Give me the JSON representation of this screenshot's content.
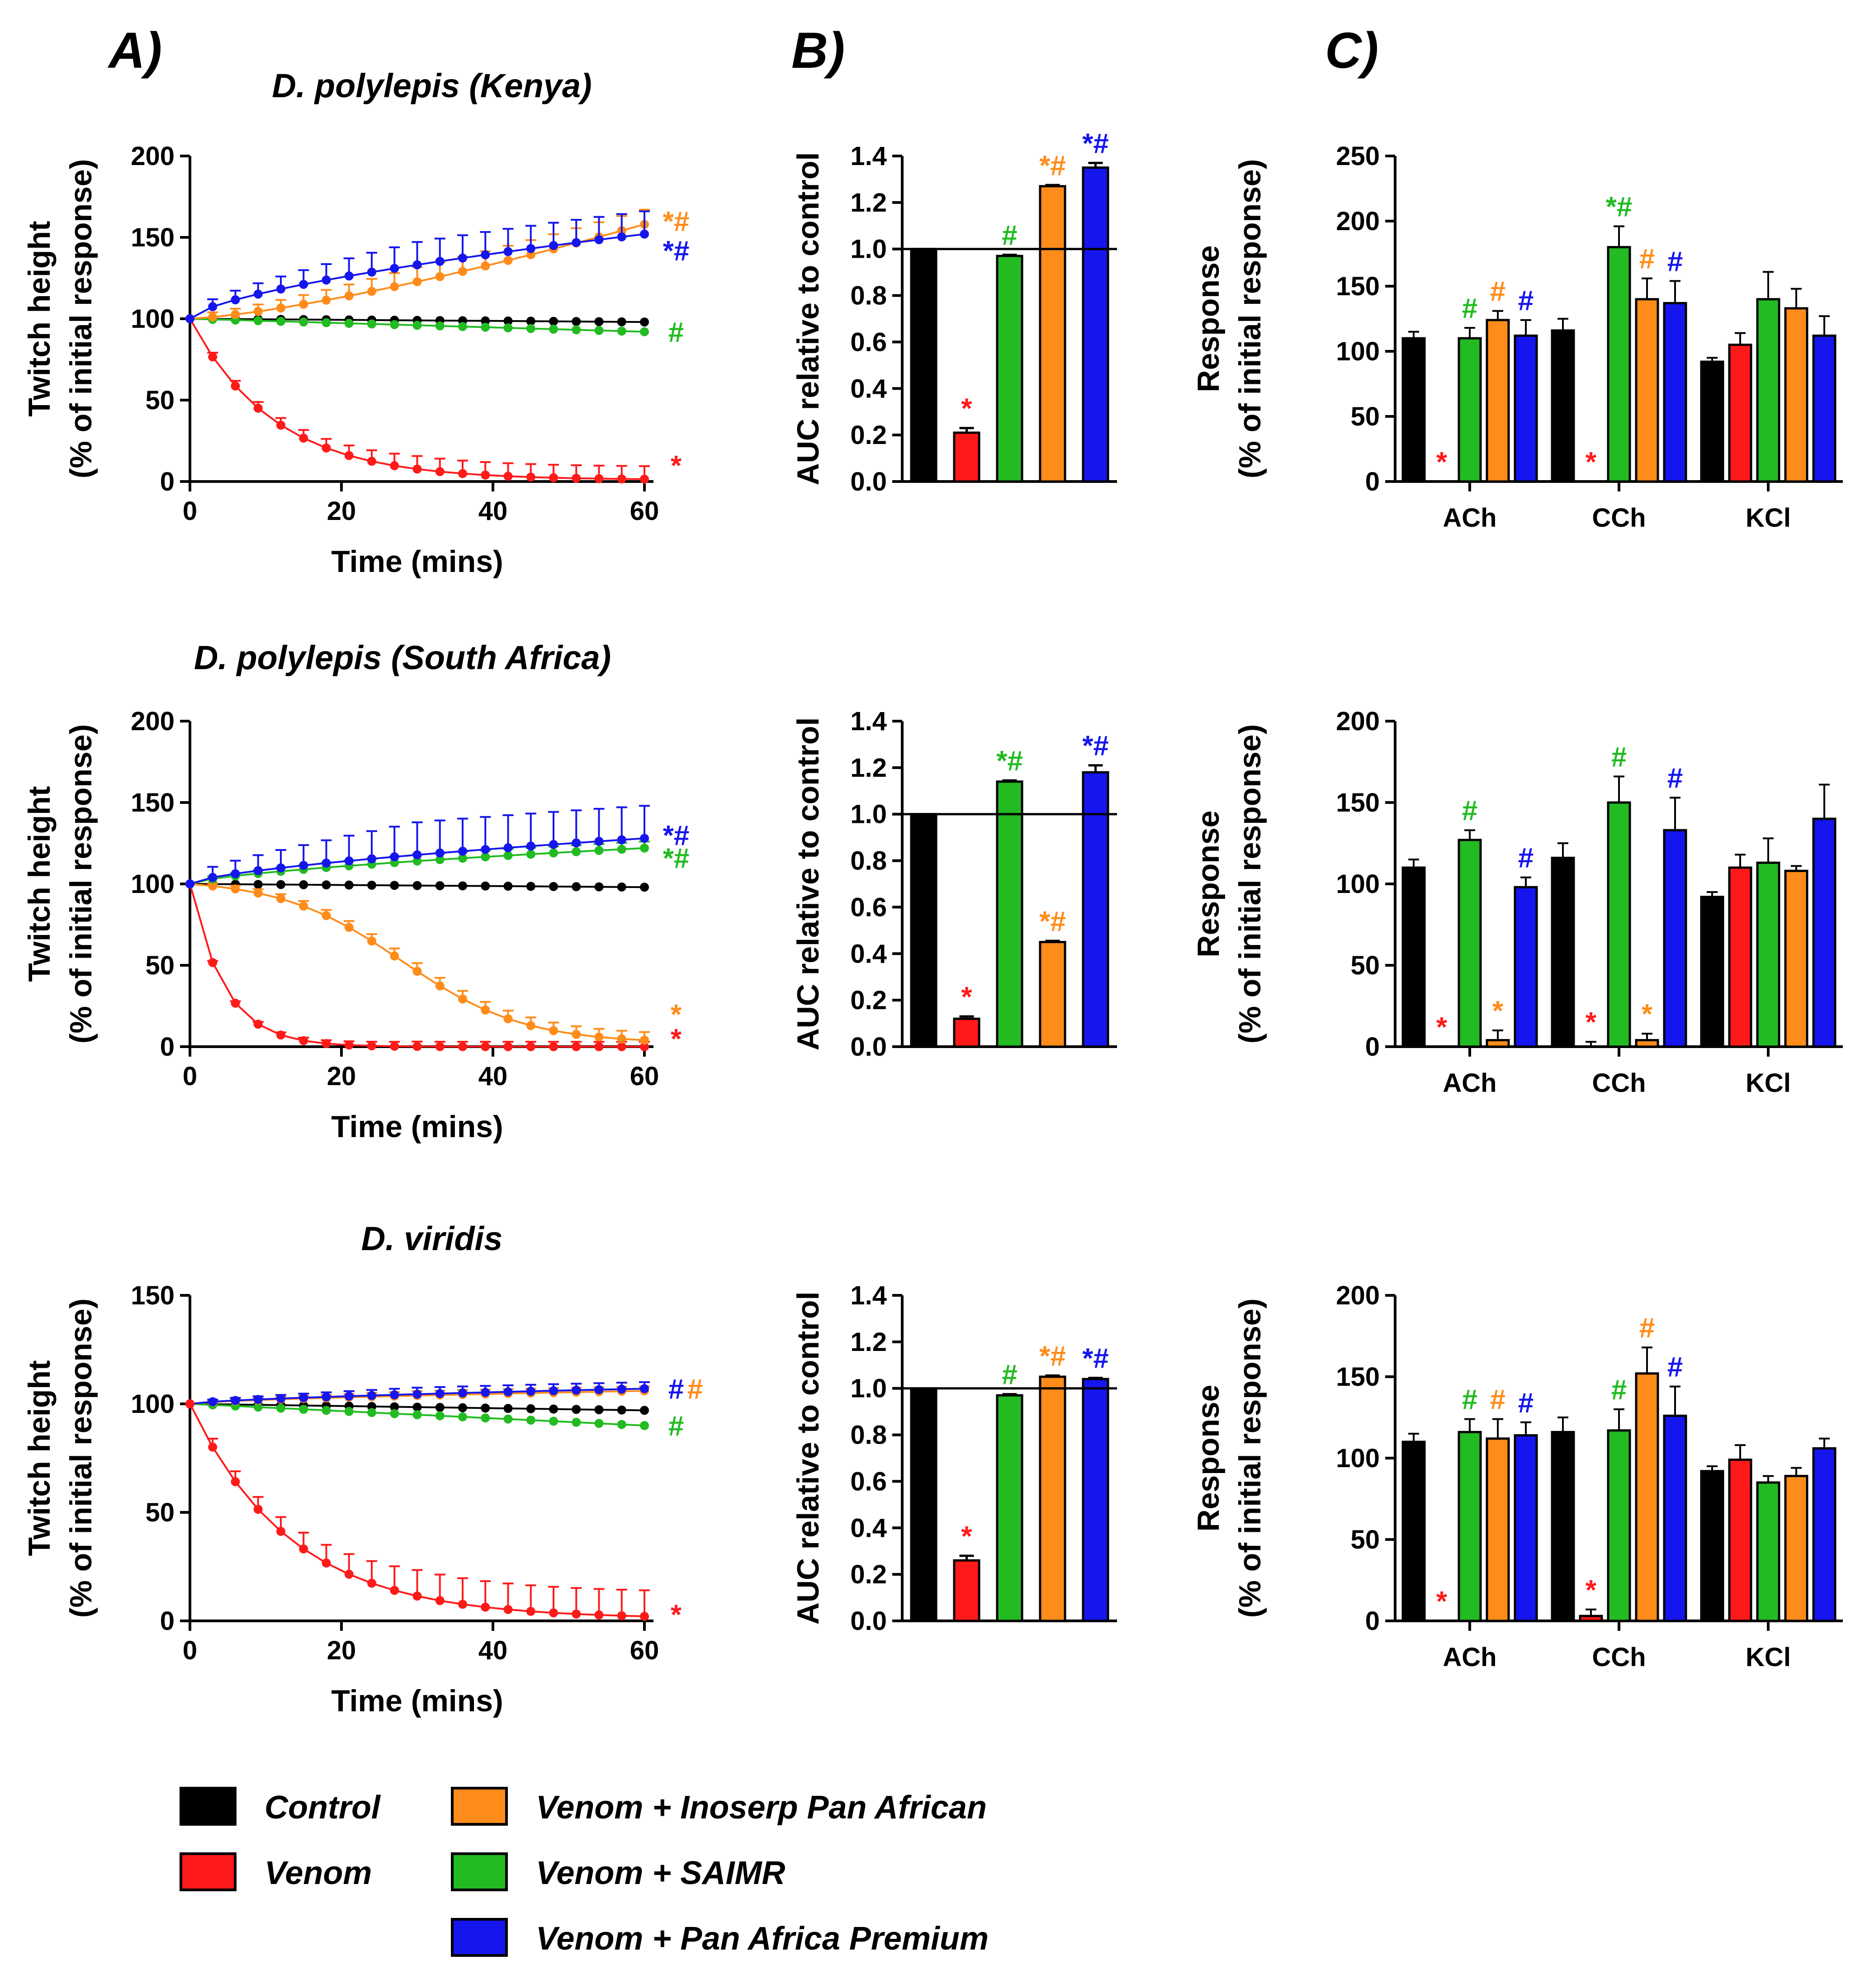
{
  "panel_labels": [
    "A)",
    "B)",
    "C)"
  ],
  "colors": {
    "Control": "#000000",
    "Venom": "#ff1a1a",
    "Venom + Inoserp Pan African": "#ff8c1a",
    "Venom + SAIMR": "#22bb22",
    "Venom + Pan Africa Premium": "#1515ee"
  },
  "legend": {
    "items": [
      "Control",
      "Venom",
      "Venom + Inoserp Pan African",
      "Venom + SAIMR",
      "Venom + Pan Africa Premium"
    ]
  },
  "chart_data": [
    {
      "id": "A1",
      "type": "line",
      "panel": "A)",
      "title": "D. polylepis (Kenya)",
      "xlabel": "Time (mins)",
      "ylabel": [
        "Twitch height",
        "(% of initial response)"
      ],
      "xlim": [
        0,
        60
      ],
      "ylim": [
        0,
        200
      ],
      "xticks": [
        0,
        20,
        40,
        60
      ],
      "yticks": [
        0,
        50,
        100,
        150,
        200
      ],
      "series": [
        {
          "name": "Control",
          "end": 98,
          "shape": "flat",
          "err": 0
        },
        {
          "name": "Venom",
          "end": 1,
          "shape": "exp",
          "k": 0.09,
          "err": 8
        },
        {
          "name": "Venom + SAIMR",
          "end": 92,
          "shape": "linear",
          "err": 0
        },
        {
          "name": "Venom + Inoserp Pan African",
          "end": 158,
          "shape": "quad",
          "err": 9
        },
        {
          "name": "Venom + Pan Africa Premium",
          "end": 152,
          "shape": "sqrt",
          "err": 14
        }
      ],
      "markers": [
        {
          "text": "*#",
          "color": "Venom + Inoserp Pan African",
          "y": 160
        },
        {
          "text": "*#",
          "color": "Venom + Pan Africa Premium",
          "y": 142
        },
        {
          "text": "#",
          "color": "Venom + SAIMR",
          "y": 92
        },
        {
          "text": "*",
          "color": "Venom",
          "y": 10
        }
      ]
    },
    {
      "id": "A2",
      "type": "line",
      "title": "D. polylepis (South Africa)",
      "xlabel": "Time (mins)",
      "ylabel": [
        "Twitch height",
        "(% of initial response)"
      ],
      "xlim": [
        0,
        60
      ],
      "ylim": [
        0,
        200
      ],
      "xticks": [
        0,
        20,
        40,
        60
      ],
      "yticks": [
        0,
        50,
        100,
        150,
        200
      ],
      "series": [
        {
          "name": "Control",
          "end": 98,
          "shape": "flat",
          "err": 0
        },
        {
          "name": "Venom",
          "end": 0,
          "shape": "exp",
          "k": 0.22,
          "err": 3
        },
        {
          "name": "Venom + Inoserp Pan African",
          "end": 4,
          "shape": "sigmoid",
          "err": 5
        },
        {
          "name": "Venom + SAIMR",
          "end": 122,
          "shape": "sqrt",
          "err": 4
        },
        {
          "name": "Venom + Pan Africa Premium",
          "end": 128,
          "shape": "sqrt",
          "err": 20
        }
      ],
      "markers": [
        {
          "text": "*#",
          "color": "Venom + Pan Africa Premium",
          "y": 130
        },
        {
          "text": "*#",
          "color": "Venom + SAIMR",
          "y": 116
        },
        {
          "text": "*",
          "color": "Venom + Inoserp Pan African",
          "y": 20
        },
        {
          "text": "*",
          "color": "Venom",
          "y": 5
        }
      ]
    },
    {
      "id": "A3",
      "type": "line",
      "title": "D. viridis",
      "xlabel": "Time (mins)",
      "ylabel": [
        "Twitch height",
        "(% of initial response)"
      ],
      "xlim": [
        0,
        60
      ],
      "ylim": [
        0,
        150
      ],
      "xticks": [
        0,
        20,
        40,
        60
      ],
      "yticks": [
        0,
        50,
        100,
        150
      ],
      "series": [
        {
          "name": "Control",
          "end": 97,
          "shape": "flat",
          "err": 0
        },
        {
          "name": "Venom + SAIMR",
          "end": 90,
          "shape": "linear",
          "err": 0
        },
        {
          "name": "Venom + Inoserp Pan African",
          "end": 106,
          "shape": "sqrt",
          "err": 2
        },
        {
          "name": "Venom + Pan Africa Premium",
          "end": 107,
          "shape": "sqrt",
          "err": 3
        },
        {
          "name": "Venom",
          "end": 1,
          "shape": "exp",
          "k": 0.075,
          "err": 12
        }
      ],
      "markers": [
        {
          "text": "#",
          "color": "Venom + Pan Africa Premium",
          "y": 107,
          "dx": 0
        },
        {
          "text": "#",
          "color": "Venom + Inoserp Pan African",
          "y": 107,
          "dx": 42
        },
        {
          "text": "#",
          "color": "Venom + SAIMR",
          "y": 90
        },
        {
          "text": "*",
          "color": "Venom",
          "y": 3
        }
      ]
    },
    {
      "id": "B1",
      "type": "bar",
      "panel": "B)",
      "ylabel": "AUC relative to control",
      "ylim": [
        0,
        1.4
      ],
      "yticks": [
        0.0,
        0.2,
        0.4,
        0.6,
        0.8,
        1.0,
        1.2,
        1.4
      ],
      "refline": 1.0,
      "bars": [
        {
          "name": "Control",
          "value": 1.0,
          "err": 0,
          "mark": ""
        },
        {
          "name": "Venom",
          "value": 0.21,
          "err": 0.02,
          "mark": "*"
        },
        {
          "name": "Venom + SAIMR",
          "value": 0.97,
          "err": 0.005,
          "mark": "#"
        },
        {
          "name": "Venom + Inoserp Pan African",
          "value": 1.27,
          "err": 0.005,
          "mark": "*#"
        },
        {
          "name": "Venom + Pan Africa Premium",
          "value": 1.35,
          "err": 0.02,
          "mark": "*#"
        }
      ]
    },
    {
      "id": "B2",
      "type": "bar",
      "ylabel": "AUC relative to control",
      "ylim": [
        0,
        1.4
      ],
      "yticks": [
        0.0,
        0.2,
        0.4,
        0.6,
        0.8,
        1.0,
        1.2,
        1.4
      ],
      "refline": 1.0,
      "bars": [
        {
          "name": "Control",
          "value": 1.0,
          "err": 0,
          "mark": ""
        },
        {
          "name": "Venom",
          "value": 0.12,
          "err": 0.01,
          "mark": "*"
        },
        {
          "name": "Venom + SAIMR",
          "value": 1.14,
          "err": 0.005,
          "mark": "*#"
        },
        {
          "name": "Venom + Inoserp Pan African",
          "value": 0.45,
          "err": 0.005,
          "mark": "*#"
        },
        {
          "name": "Venom + Pan Africa Premium",
          "value": 1.18,
          "err": 0.03,
          "mark": "*#"
        }
      ]
    },
    {
      "id": "B3",
      "type": "bar",
      "ylabel": "AUC relative to control",
      "ylim": [
        0,
        1.4
      ],
      "yticks": [
        0.0,
        0.2,
        0.4,
        0.6,
        0.8,
        1.0,
        1.2,
        1.4
      ],
      "refline": 1.0,
      "bars": [
        {
          "name": "Control",
          "value": 1.0,
          "err": 0,
          "mark": ""
        },
        {
          "name": "Venom",
          "value": 0.26,
          "err": 0.02,
          "mark": "*"
        },
        {
          "name": "Venom + SAIMR",
          "value": 0.97,
          "err": 0.005,
          "mark": "#"
        },
        {
          "name": "Venom + Inoserp Pan African",
          "value": 1.05,
          "err": 0.005,
          "mark": "*#"
        },
        {
          "name": "Venom + Pan Africa Premium",
          "value": 1.04,
          "err": 0.005,
          "mark": "*#"
        }
      ]
    },
    {
      "id": "C1",
      "type": "bar",
      "panel": "C)",
      "ylabel": [
        "Response",
        "(% of initial response)"
      ],
      "ylim": [
        0,
        250
      ],
      "yticks": [
        0,
        50,
        100,
        150,
        200,
        250
      ],
      "categories": [
        "ACh",
        "CCh",
        "KCl"
      ],
      "series": [
        {
          "name": "Control",
          "values": [
            110,
            116,
            92
          ],
          "errs": [
            5,
            9,
            3
          ],
          "marks": [
            "",
            "",
            ""
          ]
        },
        {
          "name": "Venom",
          "values": [
            0,
            0,
            105
          ],
          "errs": [
            0,
            0,
            9
          ],
          "marks": [
            "*",
            "*",
            ""
          ]
        },
        {
          "name": "Venom + SAIMR",
          "values": [
            110,
            180,
            140
          ],
          "errs": [
            8,
            16,
            21
          ],
          "marks": [
            "#",
            "*#",
            ""
          ]
        },
        {
          "name": "Venom + Inoserp Pan African",
          "values": [
            124,
            140,
            133
          ],
          "errs": [
            7,
            16,
            15
          ],
          "marks": [
            "#",
            "#",
            ""
          ]
        },
        {
          "name": "Venom + Pan Africa Premium",
          "values": [
            112,
            137,
            112
          ],
          "errs": [
            12,
            17,
            15
          ],
          "marks": [
            "#",
            "#",
            ""
          ]
        }
      ]
    },
    {
      "id": "C2",
      "type": "bar",
      "ylabel": [
        "Response",
        "(% of initial response)"
      ],
      "ylim": [
        0,
        200
      ],
      "yticks": [
        0,
        50,
        100,
        150,
        200
      ],
      "categories": [
        "ACh",
        "CCh",
        "KCl"
      ],
      "series": [
        {
          "name": "Control",
          "values": [
            110,
            116,
            92
          ],
          "errs": [
            5,
            9,
            3
          ],
          "marks": [
            "",
            "",
            ""
          ]
        },
        {
          "name": "Venom",
          "values": [
            0,
            0,
            110
          ],
          "errs": [
            0,
            3,
            8
          ],
          "marks": [
            "*",
            "*",
            ""
          ]
        },
        {
          "name": "Venom + SAIMR",
          "values": [
            127,
            150,
            113
          ],
          "errs": [
            6,
            16,
            15
          ],
          "marks": [
            "#",
            "#",
            ""
          ]
        },
        {
          "name": "Venom + Inoserp Pan African",
          "values": [
            4,
            4,
            108
          ],
          "errs": [
            6,
            4,
            3
          ],
          "marks": [
            "*",
            "*",
            ""
          ]
        },
        {
          "name": "Venom + Pan Africa Premium",
          "values": [
            98,
            133,
            140
          ],
          "errs": [
            6,
            20,
            21
          ],
          "marks": [
            "#",
            "#",
            ""
          ]
        }
      ]
    },
    {
      "id": "C3",
      "type": "bar",
      "ylabel": [
        "Response",
        "(% of initial response)"
      ],
      "ylim": [
        0,
        200
      ],
      "yticks": [
        0,
        50,
        100,
        150,
        200
      ],
      "categories": [
        "ACh",
        "CCh",
        "KCl"
      ],
      "series": [
        {
          "name": "Control",
          "values": [
            110,
            116,
            92
          ],
          "errs": [
            5,
            9,
            3
          ],
          "marks": [
            "",
            "",
            ""
          ]
        },
        {
          "name": "Venom",
          "values": [
            0,
            3,
            99
          ],
          "errs": [
            0,
            4,
            9
          ],
          "marks": [
            "*",
            "*",
            ""
          ]
        },
        {
          "name": "Venom + SAIMR",
          "values": [
            116,
            117,
            85
          ],
          "errs": [
            8,
            13,
            4
          ],
          "marks": [
            "#",
            "#",
            ""
          ]
        },
        {
          "name": "Venom + Inoserp Pan African",
          "values": [
            112,
            152,
            89
          ],
          "errs": [
            12,
            16,
            5
          ],
          "marks": [
            "#",
            "#",
            ""
          ]
        },
        {
          "name": "Venom + Pan Africa Premium",
          "values": [
            114,
            126,
            106
          ],
          "errs": [
            8,
            18,
            6
          ],
          "marks": [
            "#",
            "#",
            ""
          ]
        }
      ]
    }
  ]
}
